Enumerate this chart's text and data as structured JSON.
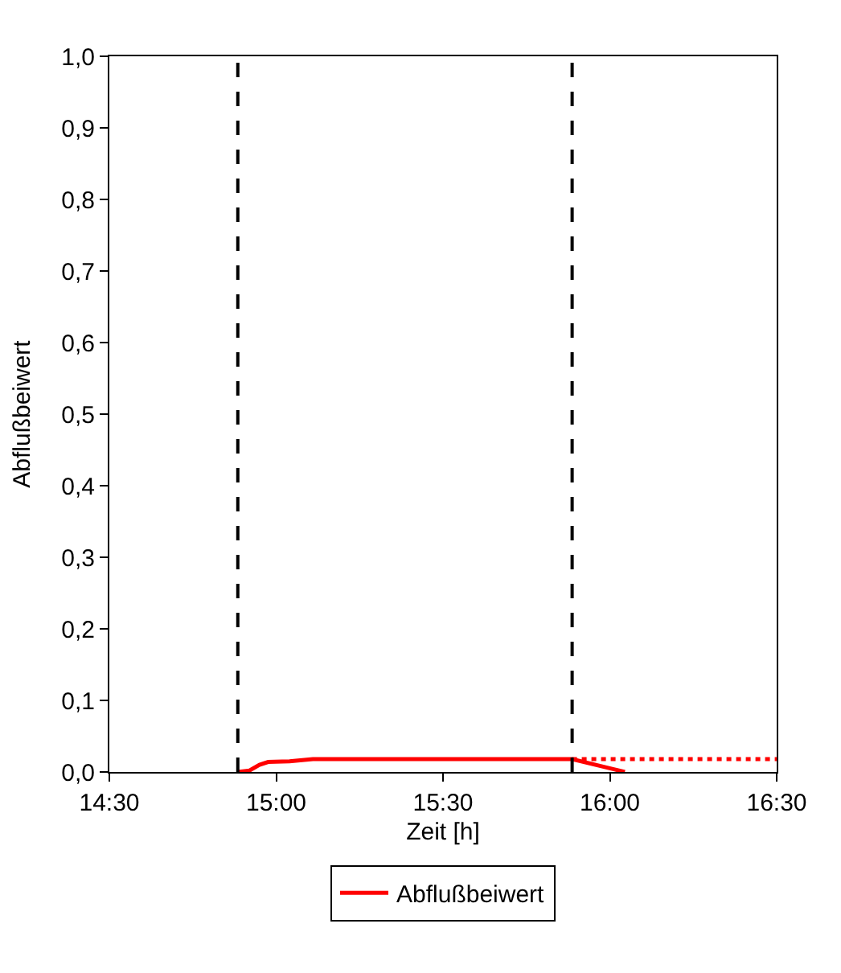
{
  "chart_data": {
    "type": "line",
    "xlabel": "Zeit [h]",
    "ylabel": "Abflußbeiwert",
    "xlim": [
      14.5,
      16.5
    ],
    "xticks": [
      {
        "value": 14.5,
        "label": "14:30"
      },
      {
        "value": 15.0,
        "label": "15:00"
      },
      {
        "value": 15.5,
        "label": "15:30"
      },
      {
        "value": 16.0,
        "label": "16:00"
      },
      {
        "value": 16.5,
        "label": "16:30"
      }
    ],
    "ylim": [
      0,
      1
    ],
    "yticks": [
      {
        "value": 0,
        "label": "0,0"
      },
      {
        "value": 0.1,
        "label": "0,1"
      },
      {
        "value": 0.2,
        "label": "0,2"
      },
      {
        "value": 0.3,
        "label": "0,3"
      },
      {
        "value": 0.4,
        "label": "0,4"
      },
      {
        "value": 0.5,
        "label": "0,5"
      },
      {
        "value": 0.6,
        "label": "0,6"
      },
      {
        "value": 0.7,
        "label": "0,7"
      },
      {
        "value": 0.8,
        "label": "0,8"
      },
      {
        "value": 0.9,
        "label": "0,9"
      },
      {
        "value": 1.0,
        "label": "1,0"
      }
    ],
    "series": [
      {
        "name": "Abflußbeiwert",
        "color": "#ff0000",
        "line_style": "solid",
        "x": [
          14.885,
          14.92,
          14.95,
          14.976,
          15.04,
          15.11,
          15.5,
          15.887,
          16.045
        ],
        "values": [
          0,
          0.002,
          0.01,
          0.014,
          0.015,
          0.018,
          0.018,
          0.018,
          0
        ]
      },
      {
        "color": "#ff0000",
        "line_style": "dotted",
        "x": [
          15.887,
          16.5
        ],
        "values": [
          0.018,
          0.018
        ]
      }
    ],
    "ref_lines": [
      {
        "axis": "x",
        "value": 14.885,
        "color": "#000000",
        "line_style": "dashed"
      },
      {
        "axis": "x",
        "value": 15.887,
        "color": "#000000",
        "line_style": "dashed"
      }
    ],
    "legend": "bottom",
    "marker": "none"
  }
}
